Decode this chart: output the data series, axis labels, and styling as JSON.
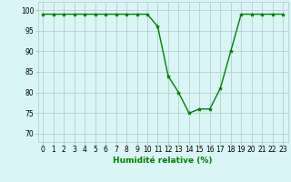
{
  "x": [
    0,
    1,
    2,
    3,
    4,
    5,
    6,
    7,
    8,
    9,
    10,
    11,
    12,
    13,
    14,
    15,
    16,
    17,
    18,
    19,
    20,
    21,
    22,
    23
  ],
  "y": [
    99,
    99,
    99,
    99,
    99,
    99,
    99,
    99,
    99,
    99,
    99,
    96,
    84,
    80,
    75,
    76,
    76,
    81,
    90,
    99,
    99,
    99,
    99,
    99
  ],
  "line_color": "#008000",
  "marker": "*",
  "marker_size": 3,
  "bg_color": "#d9f5f5",
  "grid_color": "#b0c8c8",
  "xlabel": "Humidité relative (%)",
  "xlabel_color": "#008000",
  "xlabel_fontsize": 6.5,
  "ylabel_ticks": [
    70,
    75,
    80,
    85,
    90,
    95,
    100
  ],
  "xlim": [
    -0.5,
    23.5
  ],
  "ylim": [
    68,
    102
  ]
}
